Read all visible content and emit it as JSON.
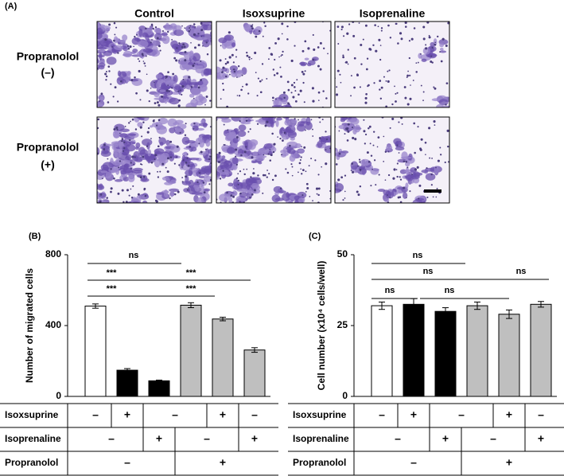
{
  "panel_a": {
    "label": "(A)",
    "columns": [
      "Control",
      "Isoxsuprine",
      "Isoprenaline"
    ],
    "rows": [
      {
        "name": "Propranolol",
        "sign": "(–)"
      },
      {
        "name": "Propranolol",
        "sign": "(+)"
      }
    ]
  },
  "chart_data": [
    {
      "type": "bar",
      "panel_label": "(B)",
      "y_label": "Number of migrated cells",
      "values": [
        510,
        148,
        88,
        515,
        437,
        262
      ],
      "errors": [
        12,
        9,
        4,
        14,
        10,
        13
      ],
      "colors": [
        "#ffffff",
        "#000000",
        "#000000",
        "#bfbfbf",
        "#bfbfbf",
        "#bfbfbf"
      ],
      "ylim": [
        0,
        800
      ],
      "yticks": [
        0,
        400,
        800
      ],
      "annotations": [
        "ns",
        "***",
        "***",
        "***",
        "***"
      ],
      "table": [
        {
          "name": "Isoxsuprine",
          "cells": [
            "–",
            "+",
            "–",
            "+",
            "–"
          ]
        },
        {
          "name": "Isoprenaline",
          "cells": [
            "–",
            "+",
            "–",
            "+"
          ]
        },
        {
          "name": "Propranolol",
          "cells": [
            "–",
            "+"
          ]
        }
      ]
    },
    {
      "type": "bar",
      "panel_label": "(C)",
      "y_label": "Cell number (x10⁴ cells/well)",
      "values": [
        32,
        32.5,
        30,
        32,
        29,
        32.5
      ],
      "errors": [
        1.3,
        2,
        1.3,
        1.3,
        1.5,
        1
      ],
      "colors": [
        "#ffffff",
        "#000000",
        "#000000",
        "#bfbfbf",
        "#bfbfbf",
        "#bfbfbf"
      ],
      "ylim": [
        0,
        50
      ],
      "yticks": [
        0,
        25,
        50
      ],
      "annotations": [
        "ns",
        "ns",
        "ns",
        "ns",
        "ns"
      ],
      "table": [
        {
          "name": "Isoxsuprine",
          "cells": [
            "–",
            "+",
            "–",
            "+",
            "–"
          ]
        },
        {
          "name": "Isoprenaline",
          "cells": [
            "–",
            "+",
            "–",
            "+"
          ]
        },
        {
          "name": "Propranolol",
          "cells": [
            "–",
            "+"
          ]
        }
      ]
    }
  ]
}
